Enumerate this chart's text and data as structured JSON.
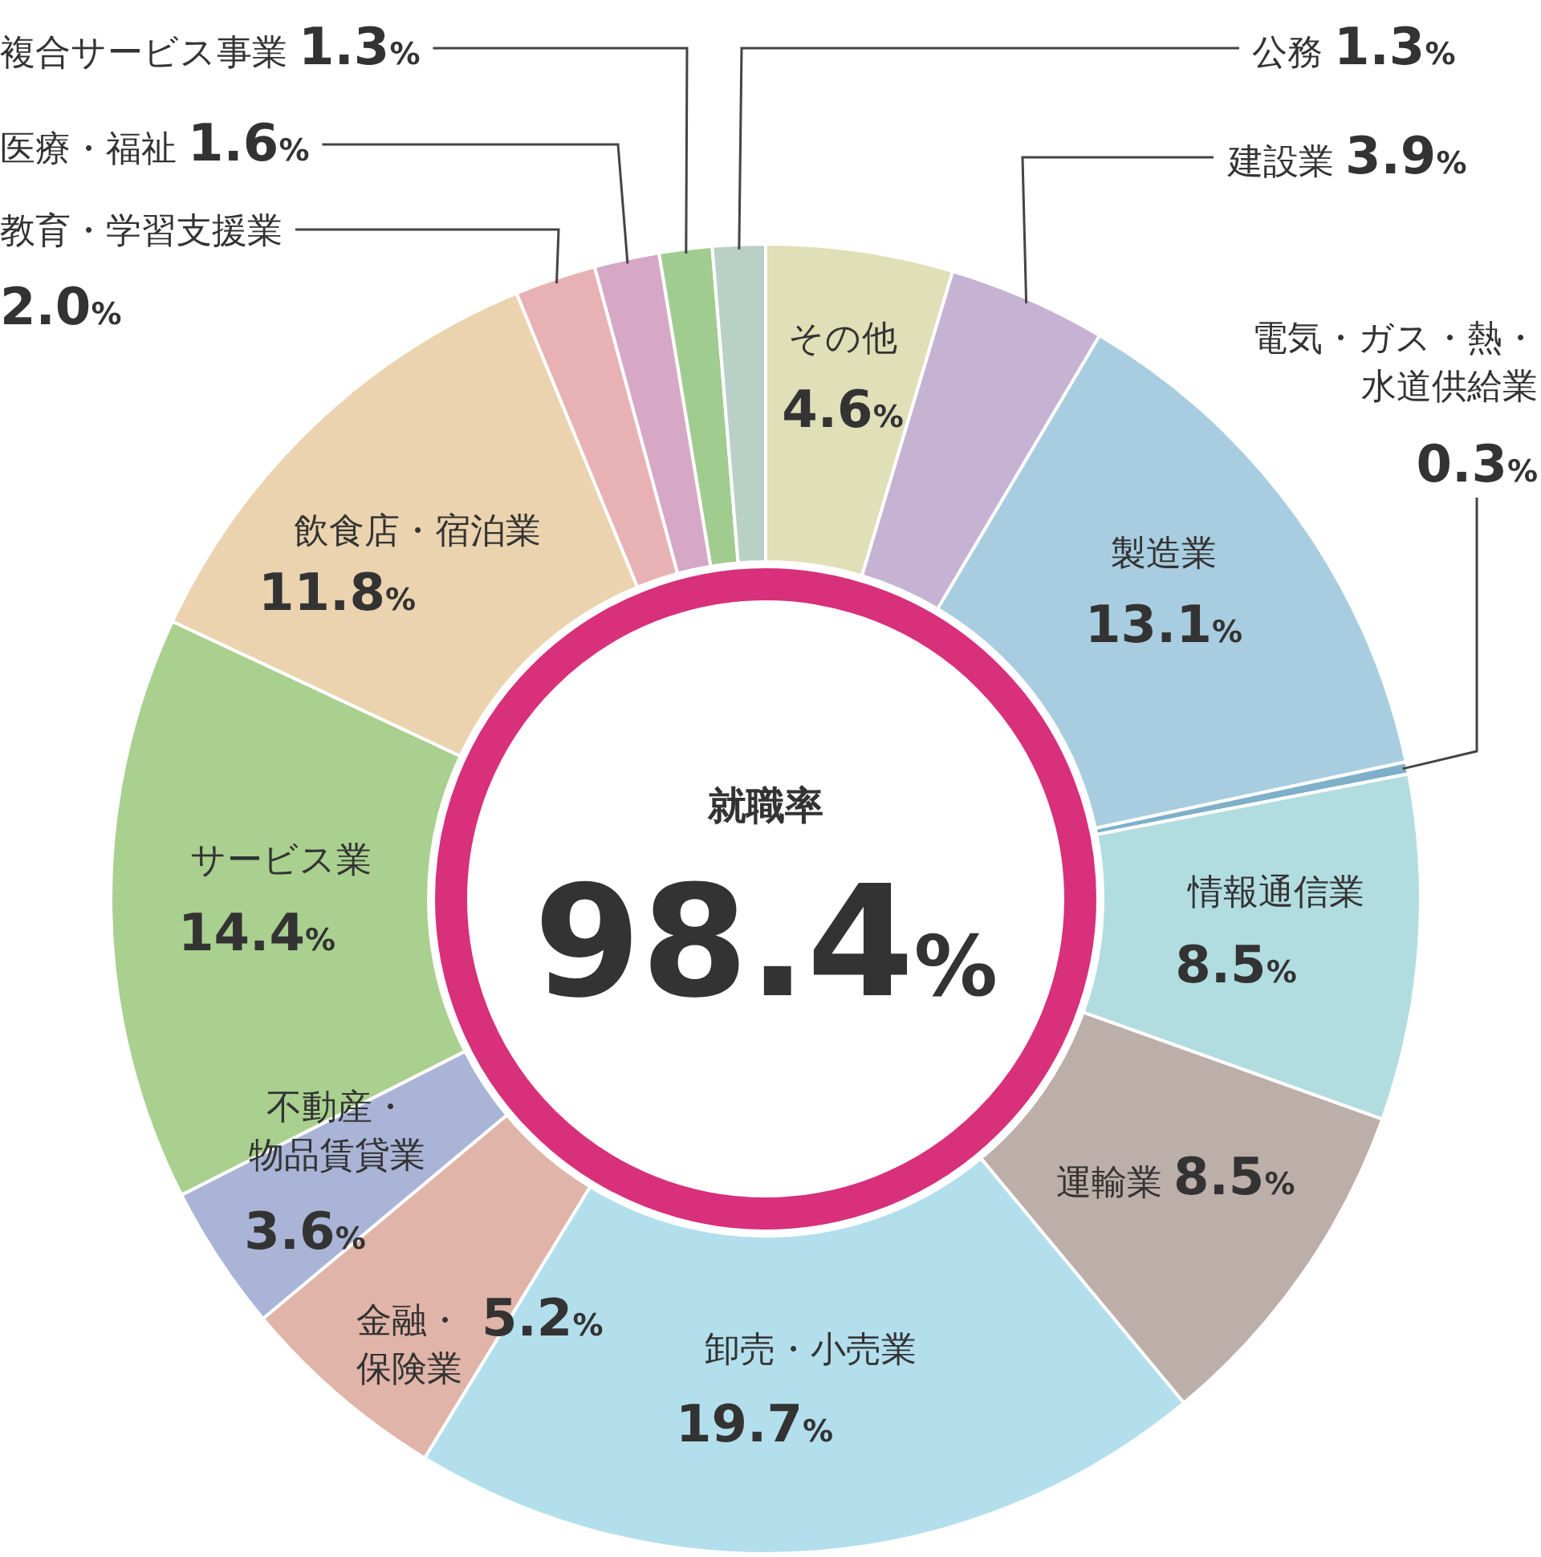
{
  "chart_data": {
    "type": "donut",
    "categories": [
      "その他",
      "建設業",
      "製造業",
      "電気・ガス・熱・水道供給業",
      "情報通信業",
      "運輸業",
      "卸売・小売業",
      "金融・保険業",
      "不動産・物品賃貸業",
      "サービス業",
      "飲食店・宿泊業",
      "教育・学習支援業",
      "医療・福祉",
      "複合サービス事業",
      "公務"
    ],
    "values": [
      4.6,
      3.9,
      13.1,
      0.3,
      8.5,
      8.5,
      19.7,
      5.2,
      3.6,
      14.4,
      11.8,
      2.0,
      1.6,
      1.3,
      1.3
    ],
    "colors": [
      "#dfdfb8",
      "#c6b3d3",
      "#a9cde0",
      "#7fb0c9",
      "#b2dde0",
      "#bcaea8",
      "#b3dfed",
      "#e0b4a8",
      "#a9b4d6",
      "#a9d08e",
      "#ead3ae",
      "#e8b2b4",
      "#d6a8c5",
      "#a1cc8f",
      "#b9d0c6"
    ],
    "value_labels": [
      "4.6%",
      "3.9%",
      "13.1%",
      "0.3%",
      "8.5%",
      "8.5%",
      "19.7%",
      "5.2%",
      "3.6%",
      "14.4%",
      "11.8%",
      "2.0%",
      "1.6%",
      "1.3%",
      "1.3%"
    ],
    "annotations": [
      "就職率",
      "98.4%"
    ]
  }
}
